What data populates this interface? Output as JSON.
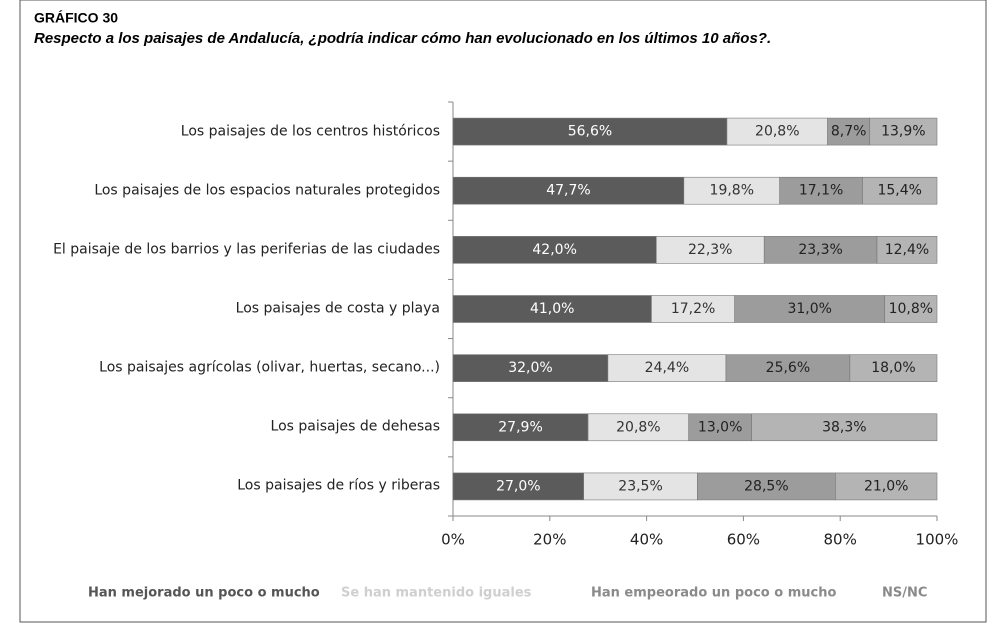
{
  "chart_data": {
    "type": "stacked-bar-horizontal",
    "title": "GRÁFICO 30",
    "subtitle": "Respecto a los paisajes de Andalucía, ¿podría indicar cómo han evolucionado en los últimos 10 años?.",
    "categories": [
      "Los paisajes de los centros históricos",
      "Los paisajes de los espacios naturales protegidos",
      "El paisaje de los barrios y las periferias de las ciudades",
      "Los paisajes de costa y playa",
      "Los paisajes agrícolas (olivar, huertas, secano...)",
      "Los paisajes de dehesas",
      "Los paisajes de ríos y riberas"
    ],
    "series": [
      {
        "name": "Han mejorado un poco o mucho",
        "color": "#5b5b5b",
        "values": [
          56.6,
          47.7,
          42.0,
          41.0,
          32.0,
          27.9,
          27.0
        ],
        "value_labels": [
          "56,6%",
          "47,7%",
          "42,0%",
          "41,0%",
          "32,0%",
          "27,9%",
          "27,0%"
        ]
      },
      {
        "name": "Se han mantenido iguales",
        "color": "#e4e4e4",
        "values": [
          20.8,
          19.8,
          22.3,
          17.2,
          24.4,
          20.8,
          23.5
        ],
        "value_labels": [
          "20,8%",
          "19,8%",
          "22,3%",
          "17,2%",
          "24,4%",
          "20,8%",
          "23,5%"
        ]
      },
      {
        "name": "Han empeorado un poco o mucho",
        "color": "#9c9c9c",
        "values": [
          8.7,
          17.1,
          23.3,
          31.0,
          25.6,
          13.0,
          28.5
        ],
        "value_labels": [
          "8,7%",
          "17,1%",
          "23,3%",
          "31,0%",
          "25,6%",
          "13,0%",
          "28,5%"
        ]
      },
      {
        "name": "NS/NC",
        "color": "#b4b4b4",
        "values": [
          13.9,
          15.4,
          12.4,
          10.8,
          18.0,
          38.3,
          21.0
        ],
        "value_labels": [
          "13,9%",
          "15,4%",
          "12,4%",
          "10,8%",
          "18,0%",
          "38,3%",
          "21,0%"
        ]
      }
    ],
    "xlim": [
      0,
      100
    ],
    "xticks": [
      {
        "value": 0,
        "label": "0%"
      },
      {
        "value": 20,
        "label": "20%"
      },
      {
        "value": 40,
        "label": "40%"
      },
      {
        "value": 60,
        "label": "60%"
      },
      {
        "value": 80,
        "label": "80%"
      },
      {
        "value": 100,
        "label": "100%"
      }
    ]
  }
}
